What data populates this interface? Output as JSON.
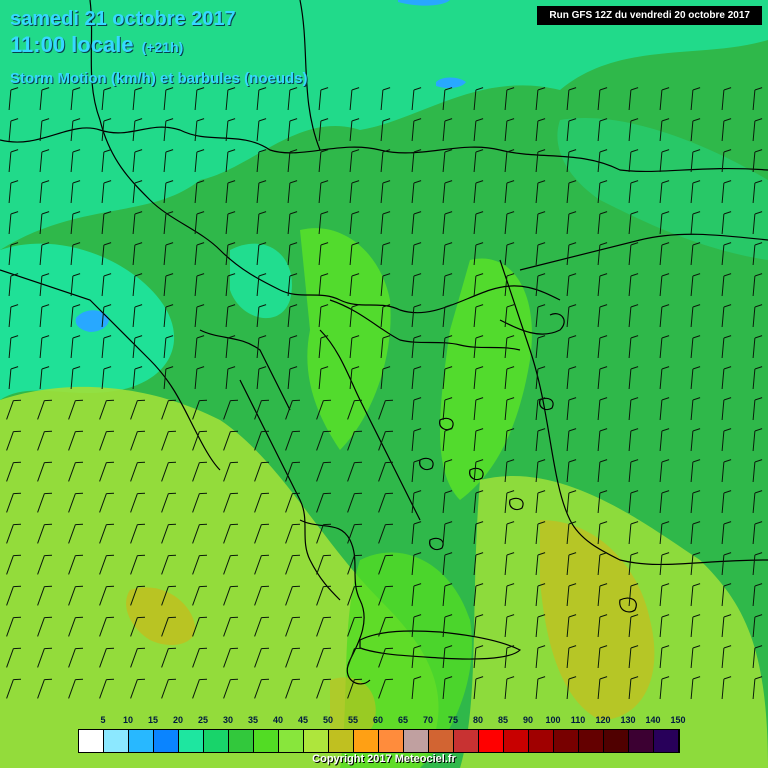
{
  "header": {
    "date": "samedi 21 octobre 2017",
    "time": "11:00 locale",
    "offset": "(+21h)",
    "parameter": "Storm Motion (km/h) et barbules (noeuds)"
  },
  "run_info": "Run GFS 12Z du vendredi 20 octobre 2017",
  "legend": {
    "labels": [
      "5",
      "10",
      "15",
      "20",
      "25",
      "30",
      "35",
      "40",
      "45",
      "50",
      "55",
      "60",
      "65",
      "70",
      "75",
      "80",
      "85",
      "90",
      "100",
      "110",
      "120",
      "130",
      "140",
      "150"
    ],
    "colors": [
      "#ffffff",
      "#8ce8ff",
      "#28b8ff",
      "#0a84ff",
      "#1ee6a0",
      "#18d46a",
      "#32c83c",
      "#52dc24",
      "#88e63c",
      "#aee63c",
      "#c0c020",
      "#ffa014",
      "#ff8c3c",
      "#c0a0a0",
      "#d26432",
      "#c83232",
      "#ff0000",
      "#c80000",
      "#a00000",
      "#780000",
      "#640000",
      "#500000",
      "#3c0032",
      "#28005a"
    ]
  },
  "map_colors": {
    "base_green": "#2fb84a",
    "mid_green": "#38c83e",
    "cyan_green": "#1ee6a0",
    "bright_green": "#58e028",
    "lime": "#9ee03a",
    "olive": "#c0c020",
    "blue": "#28a8ff",
    "barb": "#0a1a0a",
    "border": "#000000"
  },
  "copyright": "Copyright 2017 Meteociel.fr"
}
